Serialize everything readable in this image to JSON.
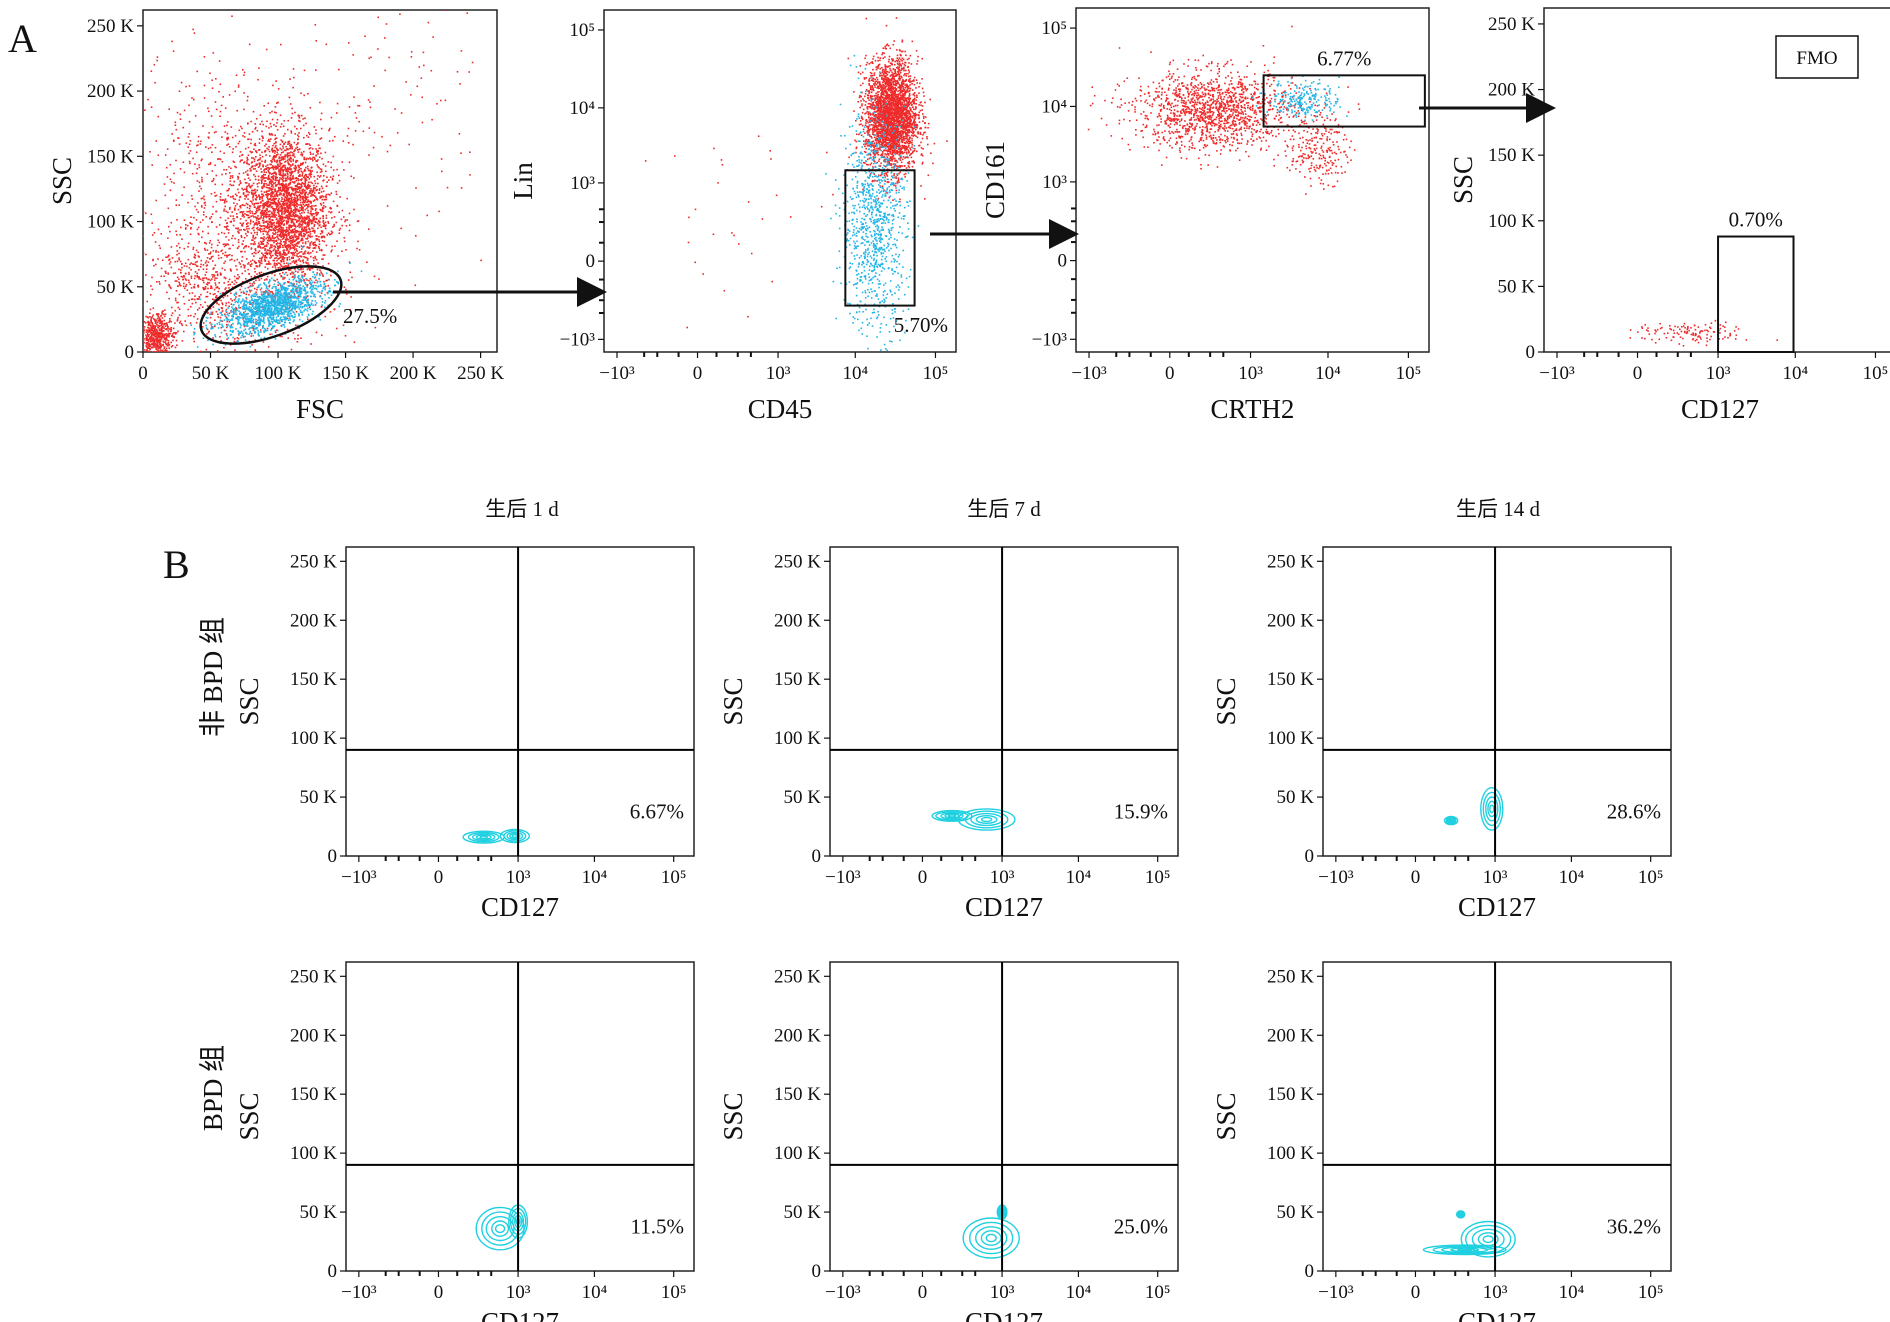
{
  "figure": {
    "panel_a_label": "A",
    "panel_b_label": "B",
    "fmo_label": "FMO",
    "column_headers": [
      "生后 1 d",
      "生后 7 d",
      "生后 14 d"
    ],
    "row_labels": [
      "非 BPD 组",
      "BPD 组"
    ]
  },
  "colors": {
    "red_events": "#ee2b2b",
    "blue_events": "#22b5e6",
    "contour": "#1fd0e0",
    "frame": "#222222"
  },
  "chart_data": [
    {
      "id": "a1",
      "type": "scatter",
      "xlabel": "FSC",
      "ylabel": "SSC",
      "xscale": "linear",
      "yscale": "linear",
      "xlim": [
        0,
        262144
      ],
      "ylim": [
        0,
        262144
      ],
      "xticks": [
        0,
        50000,
        100000,
        150000,
        200000,
        250000
      ],
      "xtick_labels": [
        "0",
        "50 K",
        "100 K",
        "150 K",
        "200 K",
        "250 K"
      ],
      "yticks": [
        0,
        50000,
        100000,
        150000,
        200000,
        250000
      ],
      "ytick_labels": [
        "0",
        "50 K",
        "100 K",
        "150 K",
        "200 K",
        "250 K"
      ],
      "gate": {
        "shape": "ellipse",
        "percentage": "27.5%"
      },
      "series": [
        {
          "color": "red",
          "clusters": [
            {
              "x": 105000,
              "y": 110000,
              "sx": 16000,
              "sy": 30000,
              "n": 2600,
              "rot": 0
            },
            {
              "x": 80000,
              "y": 100000,
              "sx": 28000,
              "sy": 55000,
              "n": 900,
              "rot": 25
            },
            {
              "x": 10000,
              "y": 12000,
              "sx": 6000,
              "sy": 9000,
              "n": 550,
              "rot": 0
            },
            {
              "x": 45000,
              "y": 50000,
              "sx": 18000,
              "sy": 25000,
              "n": 500,
              "rot": 40
            },
            {
              "x": 150000,
              "y": 180000,
              "sx": 55000,
              "sy": 45000,
              "n": 180,
              "rot": 0
            }
          ]
        },
        {
          "color": "blue",
          "clusters": [
            {
              "x": 95000,
              "y": 35000,
              "sx": 20000,
              "sy": 8000,
              "n": 1400,
              "rot": 22
            }
          ]
        }
      ]
    },
    {
      "id": "a2",
      "type": "scatter",
      "xlabel": "CD45",
      "ylabel": "Lin",
      "xscale": "biexponential",
      "yscale": "biexponential",
      "xlim": [
        -1500,
        180000
      ],
      "ylim": [
        -1500,
        180000
      ],
      "xticks": [
        -1000,
        0,
        1000,
        10000,
        100000
      ],
      "xtick_labels": [
        "−10³",
        "0",
        "10³",
        "10⁴",
        "10⁵"
      ],
      "yticks": [
        -1000,
        0,
        1000,
        10000,
        100000
      ],
      "ytick_labels": [
        "−10³",
        "0",
        "10³",
        "10⁴",
        "10⁵"
      ],
      "gate": {
        "shape": "rectangle",
        "x": [
          7500,
          55000
        ],
        "y": [
          -300,
          1500
        ],
        "percentage": "5.70%"
      },
      "series": [
        {
          "color": "red",
          "clusters": [
            {
              "x": 28000,
              "y": 8000,
              "sx": 0.16,
              "sy": 0.35,
              "n": 2800,
              "rot": 0
            },
            {
              "x": 400,
              "y": 300,
              "sx": 0.6,
              "sy": 0.6,
              "n": 30,
              "rot": 0
            }
          ]
        },
        {
          "color": "blue",
          "clusters": [
            {
              "x": 17000,
              "y": 250,
              "sx": 0.2,
              "sy": 0.7,
              "n": 950,
              "rot": 0
            }
          ]
        }
      ]
    },
    {
      "id": "a3",
      "type": "scatter",
      "xlabel": "CRTH2",
      "ylabel": "CD161",
      "xscale": "biexponential",
      "yscale": "biexponential",
      "xlim": [
        -1500,
        180000
      ],
      "ylim": [
        -1500,
        180000
      ],
      "xticks": [
        -1000,
        0,
        1000,
        10000,
        100000
      ],
      "xtick_labels": [
        "−10³",
        "0",
        "10³",
        "10⁴",
        "10⁵"
      ],
      "yticks": [
        -1000,
        0,
        1000,
        10000,
        100000
      ],
      "ytick_labels": [
        "−10³",
        "0",
        "10³",
        "10⁴",
        "10⁵"
      ],
      "gate": {
        "shape": "rectangle",
        "x": [
          1500,
          160000
        ],
        "y": [
          5500,
          25000
        ],
        "percentage": "6.77%"
      },
      "series": [
        {
          "color": "red",
          "clusters": [
            {
              "x": 280,
              "y": 9000,
              "sx": 0.5,
              "sy": 0.25,
              "n": 1400,
              "rot": 0
            },
            {
              "x": 7500,
              "y": 2800,
              "sx": 0.18,
              "sy": 0.22,
              "n": 220,
              "rot": 0
            }
          ]
        },
        {
          "color": "blue",
          "clusters": [
            {
              "x": 5000,
              "y": 12500,
              "sx": 0.22,
              "sy": 0.12,
              "n": 220,
              "rot": 0
            }
          ]
        }
      ]
    },
    {
      "id": "a4",
      "type": "scatter",
      "xlabel": "CD127",
      "ylabel": "SSC",
      "xscale": "biexponential",
      "yscale": "linear",
      "xlim": [
        -1500,
        180000
      ],
      "ylim": [
        0,
        262144
      ],
      "xticks": [
        -1000,
        0,
        1000,
        10000,
        100000
      ],
      "xtick_labels": [
        "−10³",
        "0",
        "10³",
        "10⁴",
        "10⁵"
      ],
      "yticks": [
        0,
        50000,
        100000,
        150000,
        200000,
        250000
      ],
      "ytick_labels": [
        "0",
        "50 K",
        "100 K",
        "150 K",
        "200 K",
        "250 K"
      ],
      "gate": {
        "shape": "rectangle",
        "x": [
          1000,
          9500
        ],
        "y": [
          0,
          88000
        ],
        "percentage": "0.70%"
      },
      "series": [
        {
          "color": "red",
          "clusters": [
            {
              "x": 400,
              "y": 15000,
              "sx": 0.35,
              "sy": 4000,
              "n": 120,
              "rot": 0
            }
          ]
        }
      ]
    },
    {
      "id": "b_non_d1",
      "type": "contour",
      "row": "非 BPD 组",
      "column": "生后 1 d",
      "xlabel": "CD127",
      "ylabel": "SSC",
      "xscale": "biexponential",
      "yscale": "linear",
      "xlim": [
        -1500,
        180000
      ],
      "ylim": [
        0,
        262144
      ],
      "quadrant": {
        "x": 1000,
        "y": 90000
      },
      "percentage": "6.67%",
      "contours": [
        {
          "x": 300,
          "y": 16000,
          "sx": 0.25,
          "sy": 5000
        },
        {
          "x": 900,
          "y": 17000,
          "sx": 0.18,
          "sy": 5500
        }
      ]
    },
    {
      "id": "b_non_d7",
      "type": "contour",
      "row": "非 BPD 组",
      "column": "生后 7 d",
      "xlabel": "CD127",
      "ylabel": "SSC",
      "xscale": "biexponential",
      "yscale": "linear",
      "xlim": [
        -1500,
        180000
      ],
      "ylim": [
        0,
        262144
      ],
      "quadrant": {
        "x": 1000,
        "y": 90000
      },
      "percentage": "15.9%",
      "contours": [
        {
          "x": 600,
          "y": 31000,
          "sx": 0.35,
          "sy": 9000
        },
        {
          "x": 150,
          "y": 34000,
          "sx": 0.25,
          "sy": 4500
        }
      ]
    },
    {
      "id": "b_non_d14",
      "type": "contour",
      "row": "非 BPD 组",
      "column": "生后 14 d",
      "xlabel": "CD127",
      "ylabel": "SSC",
      "xscale": "biexponential",
      "yscale": "linear",
      "xlim": [
        -1500,
        180000
      ],
      "ylim": [
        0,
        262144
      ],
      "quadrant": {
        "x": 1000,
        "y": 90000
      },
      "percentage": "28.6%",
      "contours": [
        {
          "x": 900,
          "y": 40000,
          "sx": 0.14,
          "sy": 18000
        },
        {
          "x": 200,
          "y": 30000,
          "sx": 0.08,
          "sy": 3500
        }
      ]
    },
    {
      "id": "b_bpd_d1",
      "type": "contour",
      "row": "BPD 组",
      "column": "生后 1 d",
      "xlabel": "CD127",
      "ylabel": "SSC",
      "xscale": "biexponential",
      "yscale": "linear",
      "xlim": [
        -1500,
        180000
      ],
      "ylim": [
        0,
        262144
      ],
      "quadrant": {
        "x": 1000,
        "y": 90000
      },
      "percentage": "11.5%",
      "contours": [
        {
          "x": 550,
          "y": 36000,
          "sx": 0.3,
          "sy": 18000
        },
        {
          "x": 1000,
          "y": 42000,
          "sx": 0.12,
          "sy": 14000
        }
      ]
    },
    {
      "id": "b_bpd_d7",
      "type": "contour",
      "row": "BPD 组",
      "column": "生后 7 d",
      "xlabel": "CD127",
      "ylabel": "SSC",
      "xscale": "biexponential",
      "yscale": "linear",
      "xlim": [
        -1500,
        180000
      ],
      "ylim": [
        0,
        262144
      ],
      "quadrant": {
        "x": 1000,
        "y": 90000
      },
      "percentage": "25.0%",
      "contours": [
        {
          "x": 700,
          "y": 28000,
          "sx": 0.35,
          "sy": 17000
        },
        {
          "x": 1000,
          "y": 50000,
          "sx": 0.06,
          "sy": 6000
        }
      ]
    },
    {
      "id": "b_bpd_d14",
      "type": "contour",
      "row": "BPD 组",
      "column": "生后 14 d",
      "xlabel": "CD127",
      "ylabel": "SSC",
      "xscale": "biexponential",
      "yscale": "linear",
      "xlim": [
        -1500,
        180000
      ],
      "ylim": [
        0,
        262144
      ],
      "quadrant": {
        "x": 1000,
        "y": 90000
      },
      "percentage": "36.2%",
      "contours": [
        {
          "x": 800,
          "y": 27000,
          "sx": 0.35,
          "sy": 15000
        },
        {
          "x": 350,
          "y": 18000,
          "sx": 0.5,
          "sy": 4000
        },
        {
          "x": 300,
          "y": 48000,
          "sx": 0.05,
          "sy": 3000
        }
      ]
    }
  ]
}
